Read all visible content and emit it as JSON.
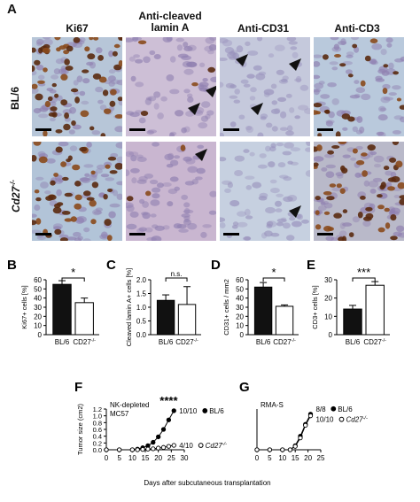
{
  "panel_A": {
    "label": "A",
    "columns": [
      "Ki67",
      "Anti-cleaved",
      "lamin A",
      "Anti-CD31",
      "Anti-CD3"
    ],
    "rows": [
      "BL/6",
      "Cd27"
    ],
    "row_superscript": "-/-",
    "tile_colors": {
      "hematoxylin_bg": "#c9b9d3",
      "dab_brown": "#5a2a10",
      "blue_bg": "#a9bfd6"
    }
  },
  "chart_data": [
    {
      "panel": "B",
      "type": "bar",
      "categories": [
        "BL/6",
        "CD27"
      ],
      "cat_superscript": [
        "",
        "-/-"
      ],
      "values": [
        55,
        35
      ],
      "errors": [
        4,
        5
      ],
      "ylabel": "Ki67+ cells [%]",
      "ylim": [
        0,
        60
      ],
      "yticks": [
        0,
        10,
        20,
        30,
        40,
        50,
        60
      ],
      "significance": "*",
      "colors": [
        "#111111",
        "#ffffff"
      ]
    },
    {
      "panel": "C",
      "type": "bar",
      "categories": [
        "BL/6",
        "CD27"
      ],
      "cat_superscript": [
        "",
        "-/-"
      ],
      "values": [
        1.25,
        1.1
      ],
      "errors": [
        0.2,
        0.65
      ],
      "ylabel": "Cleaved lamin A+ cells [%]",
      "ylim": [
        0,
        2.0
      ],
      "yticks": [
        0.0,
        0.5,
        1.0,
        1.5,
        2.0
      ],
      "significance": "n.s.",
      "colors": [
        "#111111",
        "#ffffff"
      ]
    },
    {
      "panel": "D",
      "type": "bar",
      "categories": [
        "BL/6",
        "CD27"
      ],
      "cat_superscript": [
        "",
        "-/-"
      ],
      "values": [
        52,
        31
      ],
      "errors": [
        5,
        1.5
      ],
      "ylabel": "CD31+ cells / mm2",
      "ylim": [
        0,
        60
      ],
      "yticks": [
        0,
        10,
        20,
        30,
        40,
        50,
        60
      ],
      "significance": "*",
      "colors": [
        "#111111",
        "#ffffff"
      ]
    },
    {
      "panel": "E",
      "type": "bar",
      "categories": [
        "BL/6",
        "CD27"
      ],
      "cat_superscript": [
        "",
        "-/-"
      ],
      "values": [
        14,
        27
      ],
      "errors": [
        2,
        2
      ],
      "ylabel": "CD3+ cells [%]",
      "ylim": [
        0,
        30
      ],
      "yticks": [
        0,
        10,
        20,
        30
      ],
      "significance": "***",
      "colors": [
        "#111111",
        "#ffffff"
      ]
    },
    {
      "panel": "F",
      "type": "line",
      "annotation": [
        "NK-depleted",
        "MC57"
      ],
      "xlabel": "Days after subcutaneous transplantation",
      "ylabel": "Tumor size (cm2)",
      "xlim": [
        0,
        30
      ],
      "xticks": [
        0,
        5,
        10,
        15,
        20,
        25,
        30
      ],
      "ylim": [
        0,
        1.2
      ],
      "yticks": [
        0.0,
        0.2,
        0.4,
        0.6,
        0.8,
        1.0,
        1.2
      ],
      "significance": "****",
      "series": [
        {
          "name": "BL/6",
          "count": "10/10",
          "filled": true,
          "x": [
            0,
            5,
            10,
            12,
            14,
            16,
            18,
            20,
            22,
            24,
            26
          ],
          "y": [
            0,
            0,
            0,
            0.02,
            0.06,
            0.12,
            0.22,
            0.38,
            0.6,
            0.88,
            1.15
          ]
        },
        {
          "name": "Cd27",
          "superscript": "-/-",
          "count": "4/10",
          "filled": false,
          "x": [
            0,
            5,
            10,
            12,
            14,
            16,
            18,
            20,
            22,
            24,
            26
          ],
          "y": [
            0,
            0,
            0,
            0,
            0.01,
            0.02,
            0.03,
            0.05,
            0.07,
            0.1,
            0.13
          ]
        }
      ]
    },
    {
      "panel": "G",
      "type": "line",
      "annotation": [
        "RMA-S"
      ],
      "xlim": [
        0,
        25
      ],
      "xticks": [
        0,
        5,
        10,
        15,
        20,
        25
      ],
      "ylim": [
        0,
        1.2
      ],
      "series": [
        {
          "name": "BL/6",
          "count": "8/8",
          "filled": true,
          "x": [
            0,
            5,
            10,
            13,
            15,
            17,
            19,
            21
          ],
          "y": [
            0,
            0,
            0,
            0,
            0.12,
            0.4,
            0.75,
            1.05
          ]
        },
        {
          "name": "Cd27",
          "superscript": "-/-",
          "count": "10/10",
          "filled": false,
          "x": [
            0,
            5,
            10,
            13,
            15,
            17,
            19,
            21
          ],
          "y": [
            0,
            0,
            0,
            0,
            0.1,
            0.35,
            0.72,
            1.0
          ]
        }
      ]
    }
  ]
}
